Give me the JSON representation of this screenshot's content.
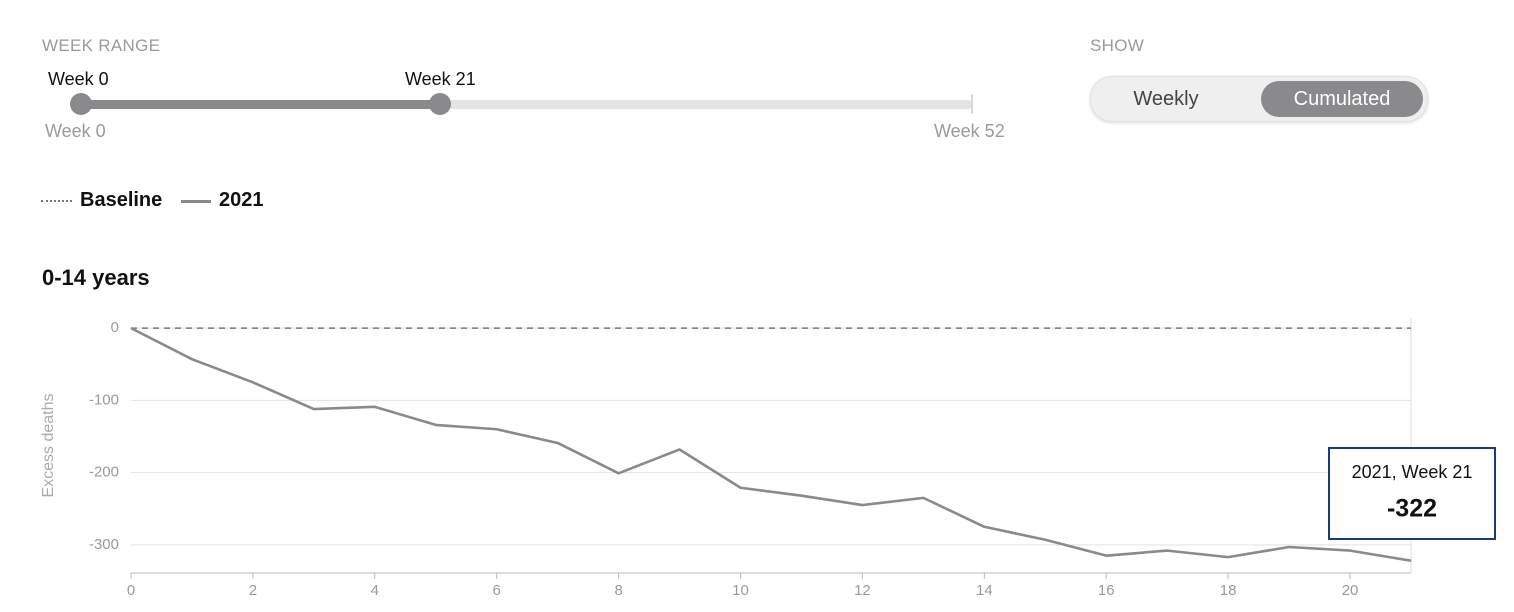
{
  "controls": {
    "week_range": {
      "label": "WEEK RANGE",
      "start_label": "Week 0",
      "end_label": "Week 21",
      "min_label": "Week 0",
      "max_label": "Week 52"
    },
    "show": {
      "label": "SHOW",
      "options": [
        "Weekly",
        "Cumulated"
      ]
    }
  },
  "chart_data": {
    "type": "line",
    "title": "0-14 years",
    "ylabel": "Excess deaths",
    "x": [
      0,
      1,
      2,
      3,
      4,
      5,
      6,
      7,
      8,
      9,
      10,
      11,
      12,
      13,
      14,
      15,
      16,
      17,
      18,
      19,
      20,
      21
    ],
    "series": [
      {
        "name": "Baseline",
        "color": "#777777",
        "dash": true,
        "values": [
          0,
          0,
          0,
          0,
          0,
          0,
          0,
          0,
          0,
          0,
          0,
          0,
          0,
          0,
          0,
          0,
          0,
          0,
          0,
          0,
          0,
          0
        ]
      },
      {
        "name": "2021",
        "color": "#8a8a8a",
        "dash": false,
        "values": [
          0,
          -43,
          -75,
          -112,
          -109,
          -134,
          -140,
          -159,
          -201,
          -168,
          -221,
          -232,
          -245,
          -235,
          -275,
          -293,
          -315,
          -308,
          -317,
          -303,
          -308,
          -322
        ]
      }
    ],
    "xlim": [
      0,
      21
    ],
    "ylim": [
      -339,
      14
    ],
    "xticks": [
      0,
      2,
      4,
      6,
      8,
      10,
      12,
      14,
      16,
      18,
      20
    ],
    "yticks": [
      0,
      -100,
      -200,
      -300
    ],
    "grid": true,
    "tooltip": {
      "label": "2021, Week 21",
      "value": -322
    }
  }
}
